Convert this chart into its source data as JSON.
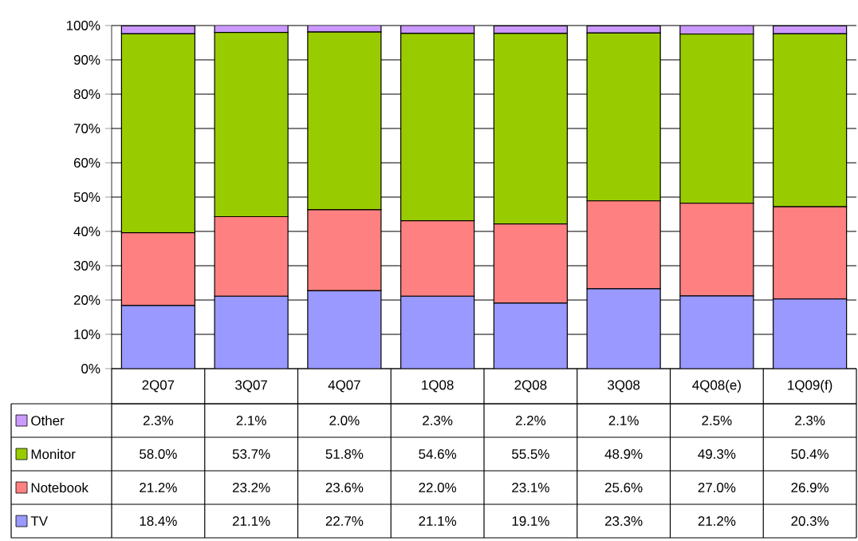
{
  "chart_data": {
    "type": "bar",
    "stacked": true,
    "categories": [
      "2Q07",
      "3Q07",
      "4Q07",
      "1Q08",
      "2Q08",
      "3Q08",
      "4Q08(e)",
      "1Q09(f)"
    ],
    "series": [
      {
        "name": "TV",
        "color": "#9999ff",
        "values": [
          18.4,
          21.1,
          22.7,
          21.1,
          19.1,
          23.3,
          21.2,
          20.3
        ],
        "value_labels": [
          "18.4%",
          "21.1%",
          "22.7%",
          "21.1%",
          "19.1%",
          "23.3%",
          "21.2%",
          "20.3%"
        ]
      },
      {
        "name": "Notebook",
        "color": "#ff8080",
        "values": [
          21.2,
          23.2,
          23.6,
          22.0,
          23.1,
          25.6,
          27.0,
          26.9
        ],
        "value_labels": [
          "21.2%",
          "23.2%",
          "23.6%",
          "22.0%",
          "23.1%",
          "25.6%",
          "27.0%",
          "26.9%"
        ]
      },
      {
        "name": "Monitor",
        "color": "#99cc00",
        "values": [
          58.0,
          53.7,
          51.8,
          54.6,
          55.5,
          48.9,
          49.3,
          50.4
        ],
        "value_labels": [
          "58.0%",
          "53.7%",
          "51.8%",
          "54.6%",
          "55.5%",
          "48.9%",
          "49.3%",
          "50.4%"
        ]
      },
      {
        "name": "Other",
        "color": "#cc99ff",
        "values": [
          2.3,
          2.1,
          2.0,
          2.3,
          2.2,
          2.1,
          2.5,
          2.3
        ],
        "value_labels": [
          "2.3%",
          "2.1%",
          "2.0%",
          "2.3%",
          "2.2%",
          "2.1%",
          "2.5%",
          "2.3%"
        ]
      }
    ],
    "ylim": [
      0,
      100
    ],
    "yticks": [
      {
        "value": 0,
        "label": "0%"
      },
      {
        "value": 10,
        "label": "10%"
      },
      {
        "value": 20,
        "label": "20%"
      },
      {
        "value": 30,
        "label": "30%"
      },
      {
        "value": 40,
        "label": "40%"
      },
      {
        "value": 50,
        "label": "50%"
      },
      {
        "value": 60,
        "label": "60%"
      },
      {
        "value": 70,
        "label": "70%"
      },
      {
        "value": 80,
        "label": "80%"
      },
      {
        "value": 90,
        "label": "90%"
      },
      {
        "value": 100,
        "label": "100%"
      }
    ],
    "grid": "y",
    "legend": "bottom"
  }
}
